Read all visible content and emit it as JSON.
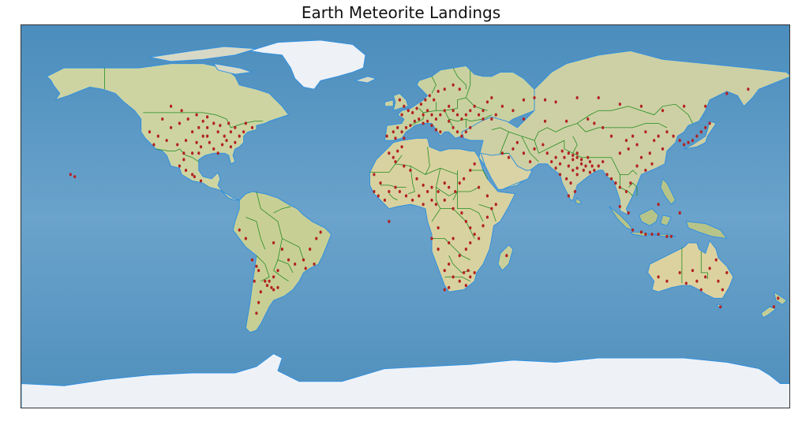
{
  "title": "Earth Meteorite Landings",
  "colors": {
    "ocean": "#5f9cc4",
    "land": "#d8d7a8",
    "ice": "#f1f4f8",
    "coast": "#2f8fe0",
    "border": "#1e8a1e",
    "marker": "#b22222"
  },
  "map": {
    "projection": "equirectangular",
    "basemap": "shaded-relief"
  },
  "chart_data": {
    "type": "scatter",
    "title": "Earth Meteorite Landings",
    "xlim": [
      -180,
      180
    ],
    "ylim": [
      -90,
      90
    ],
    "series": [
      {
        "marker_color": "#b22222",
        "points": [
          [
            -110,
            52
          ],
          [
            -105,
            50
          ],
          [
            -98,
            48
          ],
          [
            -95,
            45
          ],
          [
            -93,
            42
          ],
          [
            -90,
            44
          ],
          [
            -88,
            40
          ],
          [
            -85,
            38
          ],
          [
            -82,
            40
          ],
          [
            -80,
            42
          ],
          [
            -78,
            38
          ],
          [
            -76,
            40
          ],
          [
            -75,
            44
          ],
          [
            -72,
            42
          ],
          [
            -95,
            38
          ],
          [
            -100,
            40
          ],
          [
            -103,
            36
          ],
          [
            -98,
            35
          ],
          [
            -96,
            33
          ],
          [
            -92,
            35
          ],
          [
            -90,
            32
          ],
          [
            -86,
            34
          ],
          [
            -84,
            36
          ],
          [
            -82,
            33
          ],
          [
            -80,
            35
          ],
          [
            -88,
            30
          ],
          [
            -107,
            34
          ],
          [
            -112,
            36
          ],
          [
            -116,
            38
          ],
          [
            -118,
            34
          ],
          [
            -120,
            40
          ],
          [
            -104,
            30
          ],
          [
            -100,
            30
          ],
          [
            -97,
            30
          ],
          [
            -93,
            38
          ],
          [
            -87,
            43
          ],
          [
            -83,
            44
          ],
          [
            -110,
            42
          ],
          [
            -114,
            46
          ],
          [
            -106,
            44
          ],
          [
            -102,
            46
          ],
          [
            -97,
            42
          ],
          [
            -93,
            47
          ],
          [
            -100,
            20
          ],
          [
            -103,
            22
          ],
          [
            -106,
            24
          ],
          [
            -99,
            19
          ],
          [
            -104,
            27
          ],
          [
            -96,
            17
          ],
          [
            -78,
            -6
          ],
          [
            -75,
            -10
          ],
          [
            -62,
            -12
          ],
          [
            -58,
            -15
          ],
          [
            -55,
            -20
          ],
          [
            -52,
            -22
          ],
          [
            -48,
            -20
          ],
          [
            -45,
            -15
          ],
          [
            -42,
            -10
          ],
          [
            -40,
            -7
          ],
          [
            -47,
            -24
          ],
          [
            -43,
            -22
          ],
          [
            -60,
            -25
          ],
          [
            -62,
            -28
          ],
          [
            -64,
            -30
          ],
          [
            -65,
            -32
          ],
          [
            -63,
            -33
          ],
          [
            -62,
            -34
          ],
          [
            -60,
            -33
          ],
          [
            -66,
            -30
          ],
          [
            -68,
            -35
          ],
          [
            -69,
            -40
          ],
          [
            -70,
            -45
          ],
          [
            -71,
            -30
          ],
          [
            -72,
            -20
          ],
          [
            -70,
            -23
          ],
          [
            -69,
            -25
          ],
          [
            -9,
            38
          ],
          [
            -6,
            40
          ],
          [
            -4,
            42
          ],
          [
            -2,
            40
          ],
          [
            0,
            42
          ],
          [
            2,
            43
          ],
          [
            4,
            45
          ],
          [
            6,
            46
          ],
          [
            8,
            48
          ],
          [
            10,
            50
          ],
          [
            12,
            48
          ],
          [
            14,
            46
          ],
          [
            16,
            48
          ],
          [
            18,
            50
          ],
          [
            20,
            52
          ],
          [
            22,
            50
          ],
          [
            24,
            48
          ],
          [
            26,
            46
          ],
          [
            28,
            48
          ],
          [
            30,
            50
          ],
          [
            32,
            52
          ],
          [
            34,
            48
          ],
          [
            36,
            50
          ],
          [
            38,
            54
          ],
          [
            40,
            56
          ],
          [
            5,
            51
          ],
          [
            7,
            53
          ],
          [
            9,
            55
          ],
          [
            11,
            57
          ],
          [
            13,
            55
          ],
          [
            15,
            59
          ],
          [
            18,
            60
          ],
          [
            22,
            62
          ],
          [
            25,
            60
          ],
          [
            -3,
            55
          ],
          [
            -1,
            52
          ],
          [
            1,
            50
          ],
          [
            3,
            49
          ],
          [
            -2,
            48
          ],
          [
            12,
            43
          ],
          [
            14,
            41
          ],
          [
            16,
            40
          ],
          [
            10,
            45
          ],
          [
            8,
            44
          ],
          [
            20,
            45
          ],
          [
            22,
            42
          ],
          [
            24,
            40
          ],
          [
            26,
            38
          ],
          [
            28,
            40
          ],
          [
            30,
            42
          ],
          [
            -5,
            37
          ],
          [
            -1,
            37
          ],
          [
            36,
            46
          ],
          [
            40,
            46
          ],
          [
            42,
            48
          ],
          [
            45,
            52
          ],
          [
            55,
            55
          ],
          [
            60,
            56
          ],
          [
            65,
            55
          ],
          [
            70,
            54
          ],
          [
            80,
            56
          ],
          [
            90,
            56
          ],
          [
            100,
            53
          ],
          [
            110,
            52
          ],
          [
            120,
            50
          ],
          [
            130,
            52
          ],
          [
            140,
            52
          ],
          [
            150,
            58
          ],
          [
            160,
            60
          ],
          [
            50,
            50
          ],
          [
            55,
            46
          ],
          [
            65,
            45
          ],
          [
            75,
            45
          ],
          [
            85,
            46
          ],
          [
            -15,
            20
          ],
          [
            -12,
            16
          ],
          [
            -8,
            30
          ],
          [
            -6,
            28
          ],
          [
            -4,
            31
          ],
          [
            -2,
            33
          ],
          [
            -5,
            26
          ],
          [
            -1,
            24
          ],
          [
            2,
            22
          ],
          [
            5,
            18
          ],
          [
            8,
            15
          ],
          [
            10,
            12
          ],
          [
            12,
            14
          ],
          [
            15,
            12
          ],
          [
            18,
            16
          ],
          [
            20,
            14
          ],
          [
            23,
            12
          ],
          [
            25,
            16
          ],
          [
            27,
            18
          ],
          [
            30,
            22
          ],
          [
            32,
            25
          ],
          [
            -15,
            12
          ],
          [
            -13,
            10
          ],
          [
            -10,
            8
          ],
          [
            -8,
            12
          ],
          [
            -5,
            14
          ],
          [
            -3,
            12
          ],
          [
            0,
            10
          ],
          [
            3,
            8
          ],
          [
            6,
            10
          ],
          [
            8,
            6
          ],
          [
            12,
            8
          ],
          [
            14,
            6
          ],
          [
            18,
            8
          ],
          [
            22,
            4
          ],
          [
            26,
            2
          ],
          [
            28,
            -2
          ],
          [
            30,
            -5
          ],
          [
            32,
            -8
          ],
          [
            34,
            -10
          ],
          [
            36,
            -4
          ],
          [
            38,
            0
          ],
          [
            40,
            4
          ],
          [
            42,
            6
          ],
          [
            38,
            10
          ],
          [
            34,
            14
          ],
          [
            30,
            -12
          ],
          [
            28,
            -15
          ],
          [
            25,
            -18
          ],
          [
            20,
            -22
          ],
          [
            18,
            -25
          ],
          [
            22,
            -28
          ],
          [
            25,
            -30
          ],
          [
            28,
            -32
          ],
          [
            30,
            -28
          ],
          [
            32,
            -26
          ],
          [
            29,
            -25
          ],
          [
            18,
            -34
          ],
          [
            20,
            -33
          ],
          [
            27,
            -26
          ],
          [
            -8,
            -2
          ],
          [
            15,
            -5
          ],
          [
            12,
            -10
          ],
          [
            15,
            -15
          ],
          [
            20,
            -12
          ],
          [
            22,
            -10
          ],
          [
            47,
            -18
          ],
          [
            45,
            30
          ],
          [
            48,
            28
          ],
          [
            50,
            32
          ],
          [
            52,
            35
          ],
          [
            55,
            30
          ],
          [
            58,
            26
          ],
          [
            60,
            32
          ],
          [
            64,
            34
          ],
          [
            66,
            30
          ],
          [
            68,
            26
          ],
          [
            70,
            23
          ],
          [
            72,
            25
          ],
          [
            74,
            28
          ],
          [
            76,
            24
          ],
          [
            78,
            22
          ],
          [
            80,
            20
          ],
          [
            82,
            25
          ],
          [
            84,
            24
          ],
          [
            86,
            26
          ],
          [
            88,
            22
          ],
          [
            75,
            18
          ],
          [
            77,
            16
          ],
          [
            79,
            12
          ],
          [
            76,
            10
          ],
          [
            72,
            20
          ],
          [
            70,
            28
          ],
          [
            73,
            31
          ],
          [
            76,
            30
          ],
          [
            78,
            27
          ],
          [
            80,
            28
          ],
          [
            82,
            27
          ],
          [
            85,
            28
          ],
          [
            87,
            24
          ],
          [
            80,
            23
          ],
          [
            83,
            22
          ],
          [
            86,
            21
          ],
          [
            90,
            24
          ],
          [
            92,
            26
          ],
          [
            94,
            20
          ],
          [
            96,
            18
          ],
          [
            98,
            16
          ],
          [
            100,
            14
          ],
          [
            103,
            12
          ],
          [
            105,
            16
          ],
          [
            78,
            29
          ],
          [
            80,
            30
          ],
          [
            100,
            30
          ],
          [
            104,
            32
          ],
          [
            108,
            34
          ],
          [
            110,
            28
          ],
          [
            114,
            30
          ],
          [
            116,
            36
          ],
          [
            118,
            38
          ],
          [
            120,
            32
          ],
          [
            122,
            40
          ],
          [
            125,
            38
          ],
          [
            128,
            36
          ],
          [
            130,
            34
          ],
          [
            132,
            35
          ],
          [
            134,
            36
          ],
          [
            136,
            38
          ],
          [
            138,
            40
          ],
          [
            140,
            42
          ],
          [
            142,
            44
          ],
          [
            112,
            40
          ],
          [
            106,
            38
          ],
          [
            103,
            36
          ],
          [
            96,
            38
          ],
          [
            92,
            42
          ],
          [
            88,
            44
          ],
          [
            108,
            24
          ],
          [
            112,
            22
          ],
          [
            115,
            25
          ],
          [
            106,
            -6
          ],
          [
            110,
            -7
          ],
          [
            112,
            -8
          ],
          [
            115,
            -8
          ],
          [
            118,
            -8
          ],
          [
            122,
            -9
          ],
          [
            124,
            -9
          ],
          [
            100,
            5
          ],
          [
            104,
            2
          ],
          [
            118,
            6
          ],
          [
            128,
            2
          ],
          [
            118,
            -28
          ],
          [
            122,
            -30
          ],
          [
            128,
            -26
          ],
          [
            134,
            -25
          ],
          [
            136,
            -30
          ],
          [
            140,
            -28
          ],
          [
            142,
            -24
          ],
          [
            145,
            -20
          ],
          [
            146,
            -30
          ],
          [
            148,
            -34
          ],
          [
            138,
            -34
          ],
          [
            131,
            -31
          ],
          [
            150,
            -26
          ],
          [
            147,
            -42
          ],
          [
            172,
            -42
          ],
          [
            174,
            -38
          ],
          [
            -157,
            20
          ],
          [
            -155,
            19
          ]
        ]
      }
    ]
  }
}
